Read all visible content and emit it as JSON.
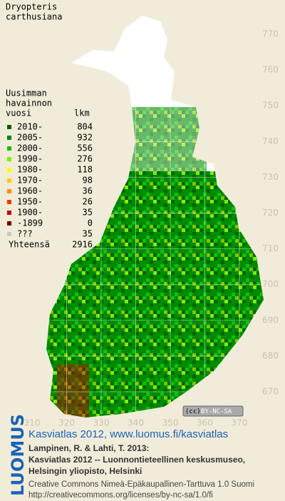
{
  "title": {
    "genus": "Dryopteris",
    "species": "carthusiana"
  },
  "legend": {
    "heading": [
      "Uusimman",
      "havainnon",
      "vuosi"
    ],
    "count_heading": "lkm",
    "rows": [
      {
        "label": "2010-",
        "count": 804,
        "color": "#006400"
      },
      {
        "label": "2005-",
        "count": 932,
        "color": "#008c00"
      },
      {
        "label": "2000-",
        "count": 556,
        "color": "#10c010"
      },
      {
        "label": "1990-",
        "count": 276,
        "color": "#80f000"
      },
      {
        "label": "1980-",
        "count": 118,
        "color": "#ffff00"
      },
      {
        "label": "1970-",
        "count": 98,
        "color": "#ffc800"
      },
      {
        "label": "1960-",
        "count": 36,
        "color": "#ff8c00"
      },
      {
        "label": "1950-",
        "count": 26,
        "color": "#e83c00"
      },
      {
        "label": "1900-",
        "count": 35,
        "color": "#c80000"
      },
      {
        "label": "-1899",
        "count": 0,
        "color": "#780000"
      },
      {
        "label": "???",
        "count": 35,
        "color": "#c8c8c8"
      }
    ],
    "total_label": "Yhteensä",
    "total": 2916
  },
  "map": {
    "yticks": [
      770,
      760,
      750,
      740,
      730,
      720,
      710,
      700,
      690,
      680,
      670
    ],
    "xticks": [
      310,
      320,
      330,
      340,
      350,
      360,
      370
    ]
  },
  "license_badge": {
    "icon": "(cc)",
    "text": "BY-NC-SA"
  },
  "footer": {
    "logo": "LUOMUS",
    "link": "Kasviatlas 2012, www.luomus.fi/kasviatlas",
    "citation": [
      "Lampinen, R. & Lahti, T. 2013:",
      "Kasviatlas 2012 -- Luonnontieteellinen keskusmuseo,",
      "Helsingin yliopisto, Helsinki"
    ],
    "license": [
      "Creative Commons Nimeä-Epäkaupallinen-Tarttuva 1.0 Suomi",
      "http://creativecommons.org/licenses/by-nc-sa/1.0/fi"
    ]
  }
}
